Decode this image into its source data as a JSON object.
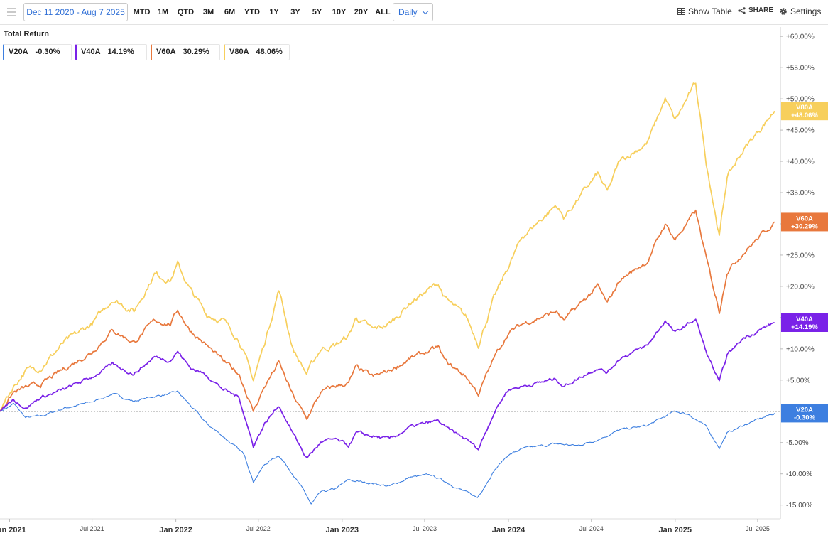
{
  "toolbar": {
    "menu_icon": "menu-lines-icon",
    "date_range": "Dec 11 2020 - Aug 7 2025",
    "ranges": [
      "MTD",
      "1M",
      "QTD",
      "3M",
      "6M",
      "YTD",
      "1Y",
      "3Y",
      "5Y",
      "10Y",
      "20Y",
      "ALL"
    ],
    "frequency": "Daily",
    "show_table": "Show Table",
    "share": "SHARE",
    "settings": "Settings"
  },
  "chart_data": {
    "type": "line",
    "title": "Total Return",
    "y_unit": "%",
    "ylim": [
      -17.2,
      61.5
    ],
    "y_ticks": [
      "+60.00%",
      "+55.00%",
      "+50.00%",
      "+45.00%",
      "+40.00%",
      "+35.00%",
      "+30.00%",
      "+25.00%",
      "+20.00%",
      "+15.00%",
      "+10.00%",
      "+5.00%",
      "-5.00%",
      "-10.00%",
      "-15.00%"
    ],
    "y_tick_values": [
      60,
      55,
      50,
      45,
      40,
      35,
      30,
      25,
      20,
      15,
      10,
      5,
      -5,
      -10,
      -15
    ],
    "x_ticks": [
      {
        "label": "Jan 2021",
        "date": "2021-01-01",
        "major": true
      },
      {
        "label": "Jul 2021",
        "date": "2021-07-01",
        "major": false
      },
      {
        "label": "Jan 2022",
        "date": "2022-01-01",
        "major": true
      },
      {
        "label": "Jul 2022",
        "date": "2022-07-01",
        "major": false
      },
      {
        "label": "Jan 2023",
        "date": "2023-01-01",
        "major": true
      },
      {
        "label": "Jul 2023",
        "date": "2023-07-01",
        "major": false
      },
      {
        "label": "Jan 2024",
        "date": "2024-01-01",
        "major": true
      },
      {
        "label": "Jul 2024",
        "date": "2024-07-01",
        "major": false
      },
      {
        "label": "Jan 2025",
        "date": "2025-01-01",
        "major": true
      },
      {
        "label": "Jul 2025",
        "date": "2025-07-01",
        "major": false
      }
    ],
    "xlim": [
      "2020-12-11",
      "2025-08-20"
    ],
    "grid": false,
    "zero_line": true,
    "legend_position": "top-left",
    "series": [
      {
        "name": "V20A",
        "latest": "-0.30%",
        "end_label": "-0.30%",
        "color": "#3d7fe0",
        "points": [
          [
            "2020-12-11",
            0
          ],
          [
            "2021-01-10",
            1.2
          ],
          [
            "2021-02-05",
            -1
          ],
          [
            "2021-03-10",
            -0.8
          ],
          [
            "2021-05-01",
            0.5
          ],
          [
            "2021-07-01",
            1.5
          ],
          [
            "2021-08-15",
            2.8
          ],
          [
            "2021-10-01",
            1.6
          ],
          [
            "2021-11-15",
            2.4
          ],
          [
            "2021-12-20",
            2.8
          ],
          [
            "2022-01-05",
            3.1
          ],
          [
            "2022-02-01",
            1
          ],
          [
            "2022-03-10",
            -2
          ],
          [
            "2022-04-15",
            -4
          ],
          [
            "2022-06-01",
            -7
          ],
          [
            "2022-06-20",
            -11.2
          ],
          [
            "2022-07-15",
            -8.5
          ],
          [
            "2022-08-15",
            -7
          ],
          [
            "2022-09-15",
            -10
          ],
          [
            "2022-10-15",
            -13.5
          ],
          [
            "2022-10-25",
            -14.9
          ],
          [
            "2022-11-15",
            -13
          ],
          [
            "2022-12-15",
            -12.5
          ],
          [
            "2023-01-15",
            -11
          ],
          [
            "2023-02-01",
            -11.2
          ],
          [
            "2023-03-10",
            -11.5
          ],
          [
            "2023-04-15",
            -12
          ],
          [
            "2023-06-01",
            -10.5
          ],
          [
            "2023-07-15",
            -10.2
          ],
          [
            "2023-08-15",
            -11.2
          ],
          [
            "2023-10-01",
            -13
          ],
          [
            "2023-10-25",
            -13.8
          ],
          [
            "2023-11-30",
            -9.5
          ],
          [
            "2023-12-31",
            -7
          ],
          [
            "2024-02-01",
            -6
          ],
          [
            "2024-04-15",
            -5.2
          ],
          [
            "2024-06-01",
            -5.5
          ],
          [
            "2024-07-15",
            -4.5
          ],
          [
            "2024-09-01",
            -3
          ],
          [
            "2024-11-01",
            -2.3
          ],
          [
            "2025-01-01",
            0
          ],
          [
            "2025-02-01",
            -0.5
          ],
          [
            "2025-03-10",
            -2.5
          ],
          [
            "2025-04-08",
            -5.8
          ],
          [
            "2025-04-25",
            -3.5
          ],
          [
            "2025-06-01",
            -2.2
          ],
          [
            "2025-08-07",
            -0.3
          ]
        ]
      },
      {
        "name": "V40A",
        "latest": "14.19%",
        "end_label": "+14.19%",
        "color": "#7a22e8",
        "points": [
          [
            "2020-12-11",
            0
          ],
          [
            "2021-01-10",
            2
          ],
          [
            "2021-02-05",
            0.5
          ],
          [
            "2021-03-10",
            2.2
          ],
          [
            "2021-05-01",
            3.5
          ],
          [
            "2021-07-01",
            5.5
          ],
          [
            "2021-08-15",
            7.5
          ],
          [
            "2021-10-01",
            6
          ],
          [
            "2021-11-15",
            8.7
          ],
          [
            "2021-12-20",
            8.2
          ],
          [
            "2022-01-05",
            9.6
          ],
          [
            "2022-02-01",
            7
          ],
          [
            "2022-03-10",
            5.8
          ],
          [
            "2022-04-15",
            3.5
          ],
          [
            "2022-05-20",
            2.2
          ],
          [
            "2022-06-20",
            -5.5
          ],
          [
            "2022-07-15",
            -2
          ],
          [
            "2022-08-15",
            1
          ],
          [
            "2022-09-15",
            -3.5
          ],
          [
            "2022-10-15",
            -7.5
          ],
          [
            "2022-11-15",
            -5
          ],
          [
            "2022-12-15",
            -4.5
          ],
          [
            "2023-01-15",
            -5.5
          ],
          [
            "2023-02-01",
            -3.5
          ],
          [
            "2023-03-10",
            -4
          ],
          [
            "2023-04-15",
            -4.5
          ],
          [
            "2023-06-01",
            -2.5
          ],
          [
            "2023-07-31",
            -1.5
          ],
          [
            "2023-08-15",
            -2.6
          ],
          [
            "2023-10-01",
            -4.5
          ],
          [
            "2023-10-27",
            -6
          ],
          [
            "2023-11-30",
            -0.2
          ],
          [
            "2023-12-31",
            3.5
          ],
          [
            "2024-02-01",
            4
          ],
          [
            "2024-04-15",
            5.2
          ],
          [
            "2024-05-01",
            4
          ],
          [
            "2024-07-15",
            7
          ],
          [
            "2024-08-05",
            6.2
          ],
          [
            "2024-09-01",
            8.5
          ],
          [
            "2024-11-01",
            10.5
          ],
          [
            "2024-12-10",
            14.5
          ],
          [
            "2025-01-01",
            12.5
          ],
          [
            "2025-02-15",
            14.8
          ],
          [
            "2025-03-10",
            9.5
          ],
          [
            "2025-04-08",
            4.6
          ],
          [
            "2025-04-25",
            9
          ],
          [
            "2025-06-01",
            11.8
          ],
          [
            "2025-08-07",
            14.19
          ]
        ]
      },
      {
        "name": "V60A",
        "latest": "30.29%",
        "end_label": "+30.29%",
        "color": "#e8783d",
        "points": [
          [
            "2020-12-11",
            0
          ],
          [
            "2021-01-10",
            3
          ],
          [
            "2021-02-05",
            3.8
          ],
          [
            "2021-03-10",
            4.3
          ],
          [
            "2021-05-01",
            6.8
          ],
          [
            "2021-07-01",
            9.5
          ],
          [
            "2021-08-15",
            13
          ],
          [
            "2021-10-01",
            11
          ],
          [
            "2021-11-15",
            14.5
          ],
          [
            "2021-12-20",
            14
          ],
          [
            "2022-01-05",
            16.2
          ],
          [
            "2022-02-01",
            13
          ],
          [
            "2022-03-10",
            10.5
          ],
          [
            "2022-04-15",
            8
          ],
          [
            "2022-05-20",
            6
          ],
          [
            "2022-06-20",
            0
          ],
          [
            "2022-07-15",
            4
          ],
          [
            "2022-08-15",
            7.8
          ],
          [
            "2022-09-15",
            2.5
          ],
          [
            "2022-10-15",
            -1.2
          ],
          [
            "2022-11-15",
            3
          ],
          [
            "2022-12-15",
            4
          ],
          [
            "2023-01-15",
            4.5
          ],
          [
            "2023-02-01",
            7
          ],
          [
            "2023-03-10",
            5.5
          ],
          [
            "2023-04-15",
            6.5
          ],
          [
            "2023-06-01",
            8.5
          ],
          [
            "2023-07-31",
            10.2
          ],
          [
            "2023-08-15",
            8
          ],
          [
            "2023-10-01",
            5.5
          ],
          [
            "2023-10-27",
            2.8
          ],
          [
            "2023-11-30",
            8.5
          ],
          [
            "2023-12-31",
            12.5
          ],
          [
            "2024-02-01",
            14
          ],
          [
            "2024-04-15",
            16
          ],
          [
            "2024-05-01",
            14.5
          ],
          [
            "2024-07-15",
            20
          ],
          [
            "2024-08-05",
            17.2
          ],
          [
            "2024-09-01",
            21
          ],
          [
            "2024-11-01",
            24
          ],
          [
            "2024-12-10",
            30
          ],
          [
            "2025-01-01",
            27.5
          ],
          [
            "2025-02-15",
            32
          ],
          [
            "2025-03-10",
            24.5
          ],
          [
            "2025-04-08",
            16
          ],
          [
            "2025-04-25",
            22.5
          ],
          [
            "2025-06-01",
            25.5
          ],
          [
            "2025-08-07",
            30.29
          ]
        ]
      },
      {
        "name": "V80A",
        "latest": "48.06%",
        "end_label": "+48.06%",
        "color": "#f7cf5c",
        "points": [
          [
            "2020-12-11",
            0
          ],
          [
            "2021-01-10",
            4
          ],
          [
            "2021-02-05",
            6.5
          ],
          [
            "2021-03-10",
            7
          ],
          [
            "2021-05-01",
            11
          ],
          [
            "2021-07-01",
            14
          ],
          [
            "2021-08-15",
            18
          ],
          [
            "2021-10-01",
            16
          ],
          [
            "2021-11-15",
            22
          ],
          [
            "2021-12-20",
            21
          ],
          [
            "2022-01-05",
            23.5
          ],
          [
            "2022-02-01",
            19.5
          ],
          [
            "2022-03-10",
            15.5
          ],
          [
            "2022-04-15",
            14.5
          ],
          [
            "2022-05-20",
            11.5
          ],
          [
            "2022-06-20",
            5
          ],
          [
            "2022-07-15",
            11
          ],
          [
            "2022-08-15",
            19.5
          ],
          [
            "2022-09-15",
            10
          ],
          [
            "2022-10-15",
            6
          ],
          [
            "2022-11-15",
            10
          ],
          [
            "2022-12-15",
            10.5
          ],
          [
            "2023-01-15",
            12
          ],
          [
            "2023-02-01",
            15
          ],
          [
            "2023-03-10",
            13
          ],
          [
            "2023-04-15",
            14
          ],
          [
            "2023-06-01",
            17.5
          ],
          [
            "2023-07-31",
            20.5
          ],
          [
            "2023-08-15",
            18
          ],
          [
            "2023-10-01",
            15
          ],
          [
            "2023-10-27",
            10.8
          ],
          [
            "2023-11-30",
            18
          ],
          [
            "2023-12-31",
            23
          ],
          [
            "2024-02-01",
            28
          ],
          [
            "2024-04-15",
            33
          ],
          [
            "2024-05-01",
            31
          ],
          [
            "2024-07-15",
            38
          ],
          [
            "2024-08-05",
            35
          ],
          [
            "2024-09-01",
            40
          ],
          [
            "2024-11-01",
            43
          ],
          [
            "2024-12-10",
            50
          ],
          [
            "2025-01-01",
            46.5
          ],
          [
            "2025-02-15",
            52.5
          ],
          [
            "2025-03-10",
            40
          ],
          [
            "2025-04-08",
            28
          ],
          [
            "2025-04-25",
            37.5
          ],
          [
            "2025-06-01",
            42
          ],
          [
            "2025-08-07",
            48.06
          ]
        ]
      }
    ]
  }
}
